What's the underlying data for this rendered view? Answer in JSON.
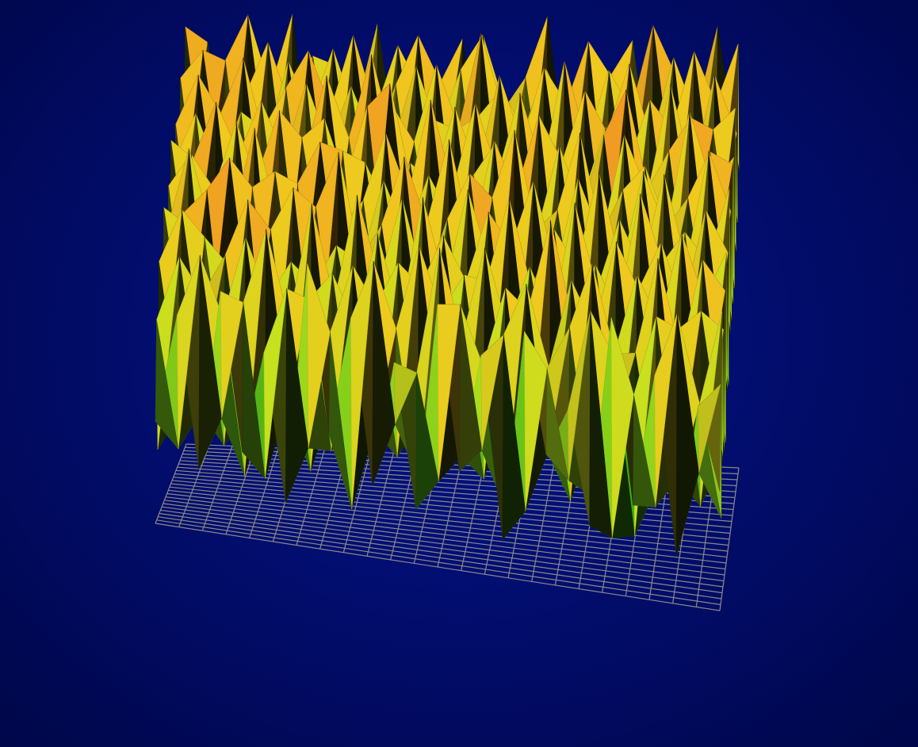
{
  "colors": {
    "background": "#020f78",
    "grid": "#8a8a8a",
    "surface_low": "#0a2a00",
    "surface_green": "#1fd81f",
    "surface_yellow": "#f2f21a",
    "surface_orange": "#f08020",
    "surface_red": "#e8103a",
    "surface_peak_pink": "#f0a0b0"
  },
  "chart_data": {
    "type": "surface",
    "title": "",
    "xlabel": "",
    "ylabel": "",
    "zlabel": "",
    "grid": true,
    "legend": "none",
    "x": [
      0,
      1,
      2,
      3,
      4,
      5,
      6,
      7,
      8,
      9,
      10,
      11,
      12,
      13,
      14,
      15,
      16,
      17,
      18,
      19,
      20,
      21,
      22,
      23,
      24,
      25,
      26
    ],
    "y": [
      0,
      1,
      2,
      3,
      4,
      5,
      6,
      7,
      8,
      9,
      10,
      11,
      12,
      13,
      14,
      15,
      16,
      17,
      18,
      19,
      20,
      21,
      22,
      23,
      24,
      25,
      26
    ],
    "zlim": [
      0,
      1
    ],
    "z_description": "",
    "z": [
      [
        0.3,
        0.62,
        0.18,
        0.71,
        0.25,
        0.55,
        0.12,
        0.83,
        0.34,
        0.69,
        0.21,
        0.58,
        0.16,
        0.77,
        0.29,
        0.64,
        0.11,
        0.73,
        0.38,
        0.52,
        0.19,
        0.81,
        0.27,
        0.66,
        0.14,
        0.59,
        0.35
      ],
      [
        0.57,
        0.2,
        0.78,
        0.31,
        0.66,
        0.15,
        0.72,
        0.26,
        0.61,
        0.1,
        0.84,
        0.37,
        0.53,
        0.22,
        0.75,
        0.33,
        0.68,
        0.17,
        0.6,
        0.28,
        0.79,
        0.13,
        0.56,
        0.24,
        0.82,
        0.36,
        0.63
      ],
      [
        0.16,
        0.74,
        0.29,
        0.58,
        0.12,
        0.86,
        0.35,
        0.67,
        0.23,
        0.79,
        0.31,
        0.62,
        0.19,
        0.88,
        0.27,
        0.55,
        0.14,
        0.81,
        0.32,
        0.7,
        0.21,
        0.64,
        0.11,
        0.77,
        0.3,
        0.53,
        0.2
      ],
      [
        0.69,
        0.25,
        0.61,
        0.17,
        0.8,
        0.33,
        0.57,
        0.13,
        0.73,
        0.27,
        0.65,
        0.21,
        0.85,
        0.34,
        0.59,
        0.18,
        0.76,
        0.26,
        0.54,
        0.15,
        0.87,
        0.38,
        0.62,
        0.23,
        0.71,
        0.19,
        0.78
      ],
      [
        0.22,
        0.83,
        0.36,
        0.71,
        0.24,
        0.6,
        0.18,
        0.9,
        0.31,
        0.56,
        0.14,
        0.76,
        0.29,
        0.63,
        0.2,
        0.84,
        0.37,
        0.67,
        0.25,
        0.78,
        0.33,
        0.58,
        0.16,
        0.88,
        0.28,
        0.74,
        0.31
      ],
      [
        0.64,
        0.14,
        0.73,
        0.26,
        0.86,
        0.21,
        0.69,
        0.35,
        0.59,
        0.18,
        0.81,
        0.3,
        0.67,
        0.12,
        0.72,
        0.24,
        0.58,
        0.19,
        0.92,
        0.32,
        0.61,
        0.15,
        0.79,
        0.35,
        0.57,
        0.22,
        0.66
      ],
      [
        0.28,
        0.77,
        0.19,
        0.63,
        0.33,
        0.75,
        0.25,
        0.6,
        0.16,
        0.89,
        0.37,
        0.54,
        0.22,
        0.8,
        0.31,
        0.68,
        0.13,
        0.74,
        0.36,
        0.59,
        0.23,
        0.85,
        0.3,
        0.62,
        0.18,
        0.83,
        0.26
      ],
      [
        0.75,
        0.32,
        0.82,
        0.2,
        0.57,
        0.14,
        0.86,
        0.28,
        0.7,
        0.36,
        0.61,
        0.17,
        0.88,
        0.27,
        0.64,
        0.15,
        0.91,
        0.33,
        0.56,
        0.21,
        0.74,
        0.26,
        0.68,
        0.12,
        0.87,
        0.29,
        0.71
      ],
      [
        0.19,
        0.68,
        0.27,
        0.9,
        0.38,
        0.66,
        0.23,
        0.78,
        0.25,
        0.63,
        0.13,
        0.84,
        0.34,
        0.59,
        0.2,
        0.83,
        0.29,
        0.61,
        0.17,
        0.89,
        0.35,
        0.57,
        0.24,
        0.8,
        0.32,
        0.64,
        0.21
      ],
      [
        0.62,
        0.24,
        0.71,
        0.15,
        0.79,
        0.3,
        0.61,
        0.19,
        0.93,
        0.37,
        0.72,
        0.28,
        0.55,
        0.16,
        0.86,
        0.36,
        0.7,
        0.22,
        0.77,
        0.31,
        0.6,
        0.18,
        0.91,
        0.34,
        0.58,
        0.14,
        0.76
      ],
      [
        0.33,
        0.86,
        0.21,
        0.65,
        0.26,
        0.82,
        0.37,
        0.69,
        0.29,
        0.57,
        0.18,
        0.91,
        0.31,
        0.73,
        0.27,
        0.6,
        0.16,
        0.88,
        0.39,
        0.63,
        0.25,
        0.79,
        0.2,
        0.67,
        0.28,
        0.85,
        0.3
      ],
      [
        0.71,
        0.17,
        0.59,
        0.33,
        0.92,
        0.23,
        0.76,
        0.14,
        0.64,
        0.26,
        0.8,
        0.35,
        0.68,
        0.19,
        0.85,
        0.3,
        0.62,
        0.24,
        0.58,
        0.18,
        0.9,
        0.33,
        0.61,
        0.27,
        0.74,
        0.2,
        0.69
      ],
      [
        0.26,
        0.79,
        0.34,
        0.74,
        0.18,
        0.63,
        0.28,
        0.87,
        0.36,
        0.7,
        0.22,
        0.6,
        0.17,
        0.92,
        0.36,
        0.75,
        0.29,
        0.66,
        0.23,
        0.84,
        0.31,
        0.57,
        0.19,
        0.88,
        0.35,
        0.62,
        0.24
      ],
      [
        0.8,
        0.3,
        0.66,
        0.22,
        0.71,
        0.35,
        0.55,
        0.21,
        0.82,
        0.15,
        0.89,
        0.27,
        0.77,
        0.32,
        0.58,
        0.13,
        0.94,
        0.38,
        0.7,
        0.25,
        0.63,
        0.17,
        0.85,
        0.3,
        0.57,
        0.23,
        0.82
      ],
      [
        0.21,
        0.72,
        0.15,
        0.85,
        0.29,
        0.9,
        0.33,
        0.64,
        0.2,
        0.76,
        0.31,
        0.67,
        0.24,
        0.61,
        0.19,
        0.87,
        0.26,
        0.59,
        0.16,
        0.92,
        0.37,
        0.75,
        0.28,
        0.64,
        0.19,
        0.9,
        0.33
      ],
      [
        0.67,
        0.35,
        0.88,
        0.28,
        0.62,
        0.16,
        0.79,
        0.37,
        0.66,
        0.33,
        0.58,
        0.19,
        0.95,
        0.35,
        0.72,
        0.31,
        0.68,
        0.21,
        0.84,
        0.3,
        0.56,
        0.22,
        0.8,
        0.36,
        0.71,
        0.27,
        0.68
      ],
      [
        0.3,
        0.81,
        0.23,
        0.69,
        0.37,
        0.75,
        0.2,
        0.83,
        0.27,
        0.88,
        0.24,
        0.71,
        0.29,
        0.64,
        0.16,
        0.8,
        0.33,
        0.9,
        0.27,
        0.61,
        0.19,
        0.86,
        0.32,
        0.58,
        0.26,
        0.83,
        0.29
      ],
      [
        0.74,
        0.19,
        0.6,
        0.31,
        0.84,
        0.28,
        0.67,
        0.25,
        0.59,
        0.17,
        0.93,
        0.34,
        0.62,
        0.2,
        0.89,
        0.38,
        0.57,
        0.15,
        0.73,
        0.35,
        0.82,
        0.28,
        0.65,
        0.18,
        0.92,
        0.31,
        0.76
      ],
      [
        0.25,
        0.88,
        0.38,
        0.77,
        0.21,
        0.64,
        0.32,
        0.91,
        0.36,
        0.71,
        0.3,
        0.57,
        0.18,
        0.84,
        0.29,
        0.63,
        0.24,
        0.81,
        0.37,
        0.58,
        0.26,
        0.94,
        0.34,
        0.75,
        0.22,
        0.65,
        0.27
      ],
      [
        0.69,
        0.27,
        0.73,
        0.18,
        0.69,
        0.35,
        0.85,
        0.19,
        0.68,
        0.23,
        0.8,
        0.26,
        0.76,
        0.37,
        0.6,
        0.17,
        0.87,
        0.31,
        0.66,
        0.21,
        0.78,
        0.35,
        0.58,
        0.3,
        0.83,
        0.33,
        0.71
      ],
      [
        0.32,
        0.74,
        0.29,
        0.89,
        0.33,
        0.8,
        0.24,
        0.62,
        0.3,
        0.93,
        0.36,
        0.65,
        0.22,
        0.7,
        0.31,
        0.89,
        0.38,
        0.59,
        0.24,
        0.86,
        0.3,
        0.62,
        0.21,
        0.9,
        0.37,
        0.76,
        0.24
      ],
      [
        0.78,
        0.22,
        0.65,
        0.36,
        0.58,
        0.19,
        0.9,
        0.34,
        0.79,
        0.27,
        0.61,
        0.17,
        0.88,
        0.28,
        0.72,
        0.23,
        0.64,
        0.2,
        0.92,
        0.33,
        0.69,
        0.18,
        0.81,
        0.26,
        0.57,
        0.21,
        0.8
      ],
      [
        0.23,
        0.85,
        0.34,
        0.71,
        0.27,
        0.83,
        0.37,
        0.68,
        0.21,
        0.58,
        0.33,
        0.84,
        0.31,
        0.64,
        0.18,
        0.78,
        0.27,
        0.86,
        0.35,
        0.62,
        0.25,
        0.89,
        0.37,
        0.68,
        0.29,
        0.87,
        0.28
      ],
      [
        0.7,
        0.31,
        0.79,
        0.24,
        0.86,
        0.29,
        0.63,
        0.18,
        0.9,
        0.36,
        0.74,
        0.22,
        0.59,
        0.34,
        0.93,
        0.3,
        0.61,
        0.18,
        0.71,
        0.25,
        0.83,
        0.31,
        0.6,
        0.19,
        0.91,
        0.34,
        0.64
      ],
      [
        0.27,
        0.66,
        0.2,
        0.92,
        0.37,
        0.61,
        0.28,
        0.82,
        0.33,
        0.62,
        0.19,
        0.88,
        0.26,
        0.77,
        0.21,
        0.64,
        0.35,
        0.79,
        0.28,
        0.89,
        0.2,
        0.66,
        0.29,
        0.85,
        0.23,
        0.7,
        0.3
      ],
      [
        0.84,
        0.29,
        0.72,
        0.21,
        0.64,
        0.24,
        0.76,
        0.31,
        0.57,
        0.26,
        0.81,
        0.3,
        0.69,
        0.16,
        0.86,
        0.37,
        0.72,
        0.23,
        0.6,
        0.17,
        0.74,
        0.36,
        0.92,
        0.33,
        0.62,
        0.26,
        0.87
      ],
      [
        0.34,
        0.76,
        0.25,
        0.6,
        0.3,
        0.87,
        0.19,
        0.7,
        0.28,
        0.85,
        0.36,
        0.63,
        0.33,
        0.81,
        0.27,
        0.58,
        0.22,
        0.9,
        0.31,
        0.66,
        0.24,
        0.83,
        0.27,
        0.72,
        0.35,
        0.89,
        0.4
      ]
    ]
  }
}
